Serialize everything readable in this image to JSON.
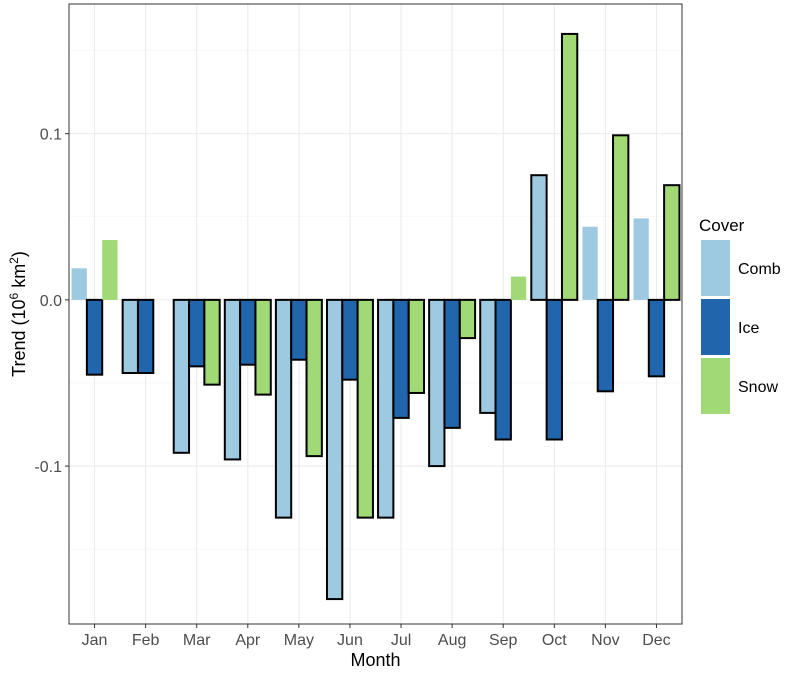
{
  "chart_data": {
    "type": "bar",
    "xlabel": "Month",
    "ylabel_main": "Trend (10",
    "ylabel_sup": "6",
    "ylabel_unit": " km",
    "ylabel_sup2": "2",
    "ylabel_close": ")",
    "categories": [
      "Jan",
      "Feb",
      "Mar",
      "Apr",
      "May",
      "Jun",
      "Jul",
      "Aug",
      "Sep",
      "Oct",
      "Nov",
      "Dec"
    ],
    "ylim": [
      -0.195,
      0.178
    ],
    "yticks": [
      -0.1,
      0.0,
      0.1
    ],
    "ytick_labels": [
      "-0.1",
      "0.0",
      "0.1"
    ],
    "legend": {
      "title": "Cover",
      "placement": "right"
    },
    "series": [
      {
        "name": "Comb",
        "color": "#9ecae1",
        "values": [
          0.019,
          -0.044,
          -0.092,
          -0.096,
          -0.131,
          -0.18,
          -0.131,
          -0.1,
          -0.068,
          0.075,
          0.044,
          0.049
        ],
        "outlined": [
          false,
          true,
          true,
          true,
          true,
          true,
          true,
          true,
          true,
          true,
          false,
          false
        ]
      },
      {
        "name": "Ice",
        "color": "#2166ac",
        "values": [
          -0.045,
          -0.044,
          -0.04,
          -0.039,
          -0.036,
          -0.048,
          -0.071,
          -0.077,
          -0.084,
          -0.084,
          -0.055,
          -0.046
        ],
        "outlined": [
          true,
          true,
          true,
          true,
          true,
          true,
          true,
          true,
          true,
          true,
          true,
          true
        ]
      },
      {
        "name": "Snow",
        "color": "#a1d975",
        "values": [
          0.036,
          0.0,
          -0.051,
          -0.057,
          -0.094,
          -0.131,
          -0.056,
          -0.023,
          0.014,
          0.16,
          0.099,
          0.069
        ],
        "outlined": [
          false,
          false,
          true,
          true,
          true,
          true,
          true,
          true,
          false,
          true,
          true,
          true
        ]
      }
    ]
  }
}
